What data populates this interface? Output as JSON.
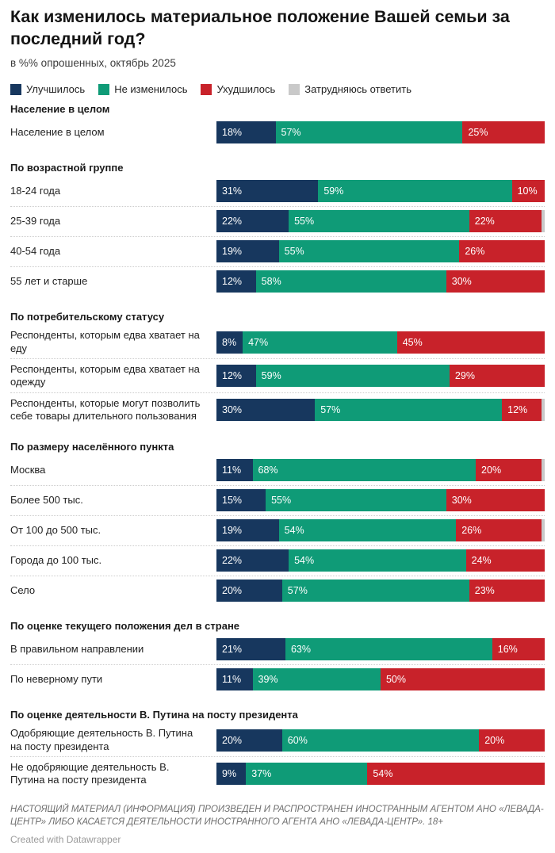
{
  "header": {
    "title": "Как изменилось материальное положение Вашей семьи за последний год?",
    "subtitle": "в %% опрошенных, октябрь 2025"
  },
  "colors": {
    "improved": "#17375e",
    "unchanged": "#0f9b77",
    "worsened": "#c8222a",
    "undecided": "#c9c9c9"
  },
  "chart_data": {
    "type": "bar",
    "stacked": true,
    "orientation": "horizontal",
    "unit": "%",
    "xlim": [
      0,
      100
    ],
    "series": [
      {
        "name": "Улучшилось",
        "color": "#17375e"
      },
      {
        "name": "Не изменилось",
        "color": "#0f9b77"
      },
      {
        "name": "Ухудшилось",
        "color": "#c8222a"
      },
      {
        "name": "Затрудняюсь ответить",
        "color": "#c9c9c9"
      }
    ],
    "groups": [
      {
        "header": "Население в целом",
        "rows": [
          {
            "label": "Население в целом",
            "values": [
              18,
              57,
              25
            ]
          }
        ]
      },
      {
        "header": "По возрастной группе",
        "rows": [
          {
            "label": "18-24 года",
            "values": [
              31,
              59,
              10
            ]
          },
          {
            "label": "25-39 года",
            "values": [
              22,
              55,
              22
            ]
          },
          {
            "label": "40-54 года",
            "values": [
              19,
              55,
              26
            ]
          },
          {
            "label": "55 лет и старше",
            "values": [
              12,
              58,
              30
            ]
          }
        ]
      },
      {
        "header": "По потребительскому статусу",
        "rows": [
          {
            "label": "Респонденты, которым едва хватает на еду",
            "values": [
              8,
              47,
              45
            ]
          },
          {
            "label": "Респонденты, которым едва хватает на одежду",
            "values": [
              12,
              59,
              29
            ]
          },
          {
            "label": "Респонденты, которые могут позволить себе товары длительного пользования",
            "values": [
              30,
              57,
              12
            ]
          }
        ]
      },
      {
        "header": "По размеру населённого пункта",
        "rows": [
          {
            "label": "Москва",
            "values": [
              11,
              68,
              20
            ]
          },
          {
            "label": "Более 500 тыс.",
            "values": [
              15,
              55,
              30
            ]
          },
          {
            "label": "От 100 до 500 тыс.",
            "values": [
              19,
              54,
              26
            ]
          },
          {
            "label": "Города до 100 тыс.",
            "values": [
              22,
              54,
              24
            ]
          },
          {
            "label": "Село",
            "values": [
              20,
              57,
              23
            ]
          }
        ]
      },
      {
        "header": "По оценке текущего положения дел в стране",
        "rows": [
          {
            "label": "В правильном направлении",
            "values": [
              21,
              63,
              16
            ]
          },
          {
            "label": "По неверному пути",
            "values": [
              11,
              39,
              50
            ]
          }
        ]
      },
      {
        "header": "По оценке деятельности В. Путина на посту президента",
        "rows": [
          {
            "label": "Одобряющие деятельность В. Путина на посту президента",
            "values": [
              20,
              60,
              20
            ]
          },
          {
            "label": "Не одобряющие деятельность В. Путина на посту президента",
            "values": [
              9,
              37,
              54
            ]
          }
        ]
      }
    ]
  },
  "footer": {
    "disclaimer": "НАСТОЯЩИЙ МАТЕРИАЛ (ИНФОРМАЦИЯ) ПРОИЗВЕДЕН И РАСПРОСТРАНЕН ИНОСТРАННЫМ АГЕНТОМ АНО «ЛЕВАДА-ЦЕНТР» ЛИБО КАСАЕТСЯ ДЕЯТЕЛЬНОСТИ ИНОСТРАННОГО АГЕНТА АНО «ЛЕВАДА-ЦЕНТР». 18+",
    "credit": "Created with Datawrapper"
  }
}
